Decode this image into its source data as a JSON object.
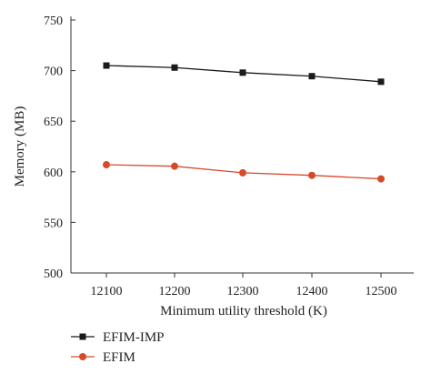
{
  "chart_data": {
    "type": "line",
    "title": "",
    "xlabel": "Minimum utility threshold (K)",
    "ylabel": "Memory (MB)",
    "x": [
      12100,
      12200,
      12300,
      12400,
      12500
    ],
    "x_tick_labels": [
      "12100",
      "12200",
      "12300",
      "12400",
      "12500"
    ],
    "ylim": [
      500,
      750
    ],
    "y_ticks": [
      500,
      550,
      600,
      650,
      700,
      750
    ],
    "y_tick_labels": [
      "500",
      "550",
      "600",
      "650",
      "700",
      "750"
    ],
    "grid": false,
    "legend_position": "bottom-left, below plot",
    "series": [
      {
        "name": "EFIM-IMP",
        "values": [
          705,
          703,
          698,
          694.5,
          689
        ],
        "color": "#1a1a1a",
        "marker": "square"
      },
      {
        "name": "EFIM",
        "values": [
          607,
          605.5,
          599,
          596.5,
          593
        ],
        "color": "#d64a2a",
        "marker": "circle"
      }
    ]
  }
}
